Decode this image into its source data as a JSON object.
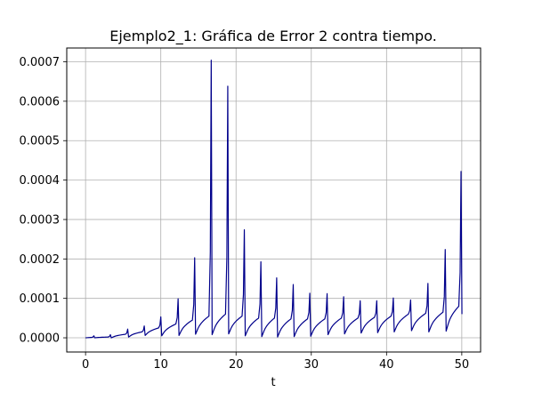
{
  "chart_data": {
    "type": "line",
    "title": "Ejemplo2_1: Gráfica de Error 2 contra tiempo.",
    "xlabel": "t",
    "ylabel": "",
    "xlim": [
      -2.5,
      52.5
    ],
    "ylim": [
      -3.6e-05,
      0.000735
    ],
    "xticks": [
      0,
      10,
      20,
      30,
      40,
      50
    ],
    "xtick_labels": [
      "0",
      "10",
      "20",
      "30",
      "40",
      "50"
    ],
    "yticks": [
      0.0,
      0.0001,
      0.0002,
      0.0003,
      0.0004,
      0.0005,
      0.0006,
      0.0007
    ],
    "ytick_labels": [
      "0.0000",
      "0.0001",
      "0.0002",
      "0.0003",
      "0.0004",
      "0.0005",
      "0.0006",
      "0.0007"
    ],
    "grid": true,
    "line_color": "#00008b",
    "peaks": [
      {
        "t": 1.1,
        "peak": 5e-06,
        "base_after": 0.0,
        "pre_level": 1e-06
      },
      {
        "t": 3.3,
        "peak": 8e-06,
        "base_after": 0.0,
        "pre_level": 2e-06
      },
      {
        "t": 5.6,
        "peak": 2.2e-05,
        "base_after": 2e-06,
        "pre_level": 9e-06
      },
      {
        "t": 7.8,
        "peak": 3e-05,
        "base_after": 6e-06,
        "pre_level": 1.5e-05
      },
      {
        "t": 10.0,
        "peak": 5.3e-05,
        "base_after": 5e-06,
        "pre_level": 2.5e-05
      },
      {
        "t": 12.3,
        "peak": 9.9e-05,
        "base_after": 6e-06,
        "pre_level": 3.5e-05
      },
      {
        "t": 14.5,
        "peak": 0.000203,
        "base_after": 9e-06,
        "pre_level": 4.5e-05
      },
      {
        "t": 16.7,
        "peak": 0.000704,
        "base_after": 8e-06,
        "pre_level": 5.5e-05
      },
      {
        "t": 18.9,
        "peak": 0.000638,
        "base_after": 1e-05,
        "pre_level": 6e-05
      },
      {
        "t": 21.1,
        "peak": 0.000274,
        "base_after": 5e-06,
        "pre_level": 5.5e-05
      },
      {
        "t": 23.3,
        "peak": 0.000193,
        "base_after": 3e-06,
        "pre_level": 5e-05
      },
      {
        "t": 25.4,
        "peak": 0.000152,
        "base_after": 2e-06,
        "pre_level": 5e-05
      },
      {
        "t": 27.6,
        "peak": 0.000135,
        "base_after": 3e-06,
        "pre_level": 4.8e-05
      },
      {
        "t": 29.8,
        "peak": 0.000113,
        "base_after": 4e-06,
        "pre_level": 4.8e-05
      },
      {
        "t": 32.1,
        "peak": 0.000112,
        "base_after": 8e-06,
        "pre_level": 4.8e-05
      },
      {
        "t": 34.3,
        "peak": 0.000104,
        "base_after": 1e-05,
        "pre_level": 5e-05
      },
      {
        "t": 36.5,
        "peak": 9.4e-05,
        "base_after": 1.2e-05,
        "pre_level": 5e-05
      },
      {
        "t": 38.7,
        "peak": 9.4e-05,
        "base_after": 1.3e-05,
        "pre_level": 5.2e-05
      },
      {
        "t": 40.9,
        "peak": 0.000101,
        "base_after": 1.5e-05,
        "pre_level": 5.5e-05
      },
      {
        "t": 43.2,
        "peak": 9.6e-05,
        "base_after": 1.8e-05,
        "pre_level": 6e-05
      },
      {
        "t": 45.5,
        "peak": 0.000138,
        "base_after": 1.5e-05,
        "pre_level": 6.2e-05
      },
      {
        "t": 47.8,
        "peak": 0.000224,
        "base_after": 1.7e-05,
        "pre_level": 6.5e-05
      },
      {
        "t": 49.9,
        "peak": 0.000422,
        "base_after": 6e-05,
        "pre_level": 8e-05
      }
    ]
  }
}
